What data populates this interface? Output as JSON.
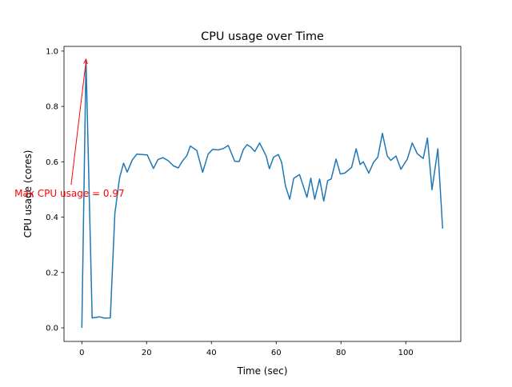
{
  "chart_data": {
    "type": "line",
    "title": "CPU usage over Time",
    "xlabel": "Time (sec)",
    "ylabel": "CPU usage (cores)",
    "xlim": [
      -5.5,
      117
    ],
    "ylim": [
      -0.049,
      1.017
    ],
    "xticks": [
      0,
      20,
      40,
      60,
      80,
      100
    ],
    "xtick_labels": [
      "0",
      "20",
      "40",
      "60",
      "80",
      "100"
    ],
    "yticks": [
      0.0,
      0.2,
      0.4,
      0.6,
      0.8,
      1.0
    ],
    "ytick_labels": [
      "0.0",
      "0.2",
      "0.4",
      "0.6",
      "0.8",
      "1.0"
    ],
    "grid": false,
    "series": [
      {
        "name": "CPU usage",
        "color": "#1f77b4",
        "x": [
          0,
          1.3,
          3.2,
          5.5,
          6.9,
          8.8,
          10.2,
          11.7,
          12.9,
          14,
          15.6,
          17,
          20.2,
          22.1,
          23.5,
          25,
          26.7,
          28.3,
          29.8,
          31,
          32.4,
          33.5,
          35.5,
          37.3,
          39,
          40.4,
          42.1,
          43.7,
          45.2,
          47.2,
          48.6,
          49.9,
          51,
          52.2,
          53.4,
          54.9,
          56.9,
          57.9,
          59.2,
          60.7,
          61.7,
          62.9,
          64.2,
          65.4,
          67.2,
          69.5,
          70.7,
          71.9,
          73.4,
          74.7,
          75.9,
          77,
          78.5,
          79.8,
          81.2,
          83.3,
          84.7,
          85.9,
          86.9,
          88.6,
          90,
          91.4,
          92.8,
          94.3,
          95.4,
          97,
          98.5,
          100.5,
          102,
          103.6,
          105.4,
          106.7,
          108.1,
          109.9,
          111.4
        ],
        "y": [
          0.0,
          0.97,
          0.036,
          0.04,
          0.035,
          0.036,
          0.414,
          0.544,
          0.595,
          0.563,
          0.607,
          0.628,
          0.625,
          0.576,
          0.608,
          0.615,
          0.604,
          0.585,
          0.578,
          0.602,
          0.622,
          0.657,
          0.641,
          0.562,
          0.628,
          0.645,
          0.643,
          0.648,
          0.659,
          0.602,
          0.601,
          0.645,
          0.662,
          0.653,
          0.637,
          0.668,
          0.621,
          0.575,
          0.617,
          0.626,
          0.597,
          0.511,
          0.465,
          0.54,
          0.554,
          0.472,
          0.541,
          0.465,
          0.538,
          0.458,
          0.532,
          0.538,
          0.61,
          0.556,
          0.559,
          0.58,
          0.647,
          0.59,
          0.6,
          0.559,
          0.597,
          0.617,
          0.703,
          0.621,
          0.605,
          0.621,
          0.573,
          0.61,
          0.668,
          0.629,
          0.612,
          0.686,
          0.499,
          0.647,
          0.359
        ]
      }
    ],
    "annotation": {
      "text": "Max CPU usage = 0.97",
      "color": "#ff0000",
      "xy": [
        1.3,
        0.97
      ],
      "xytext": [
        -3.8,
        0.485
      ]
    }
  }
}
